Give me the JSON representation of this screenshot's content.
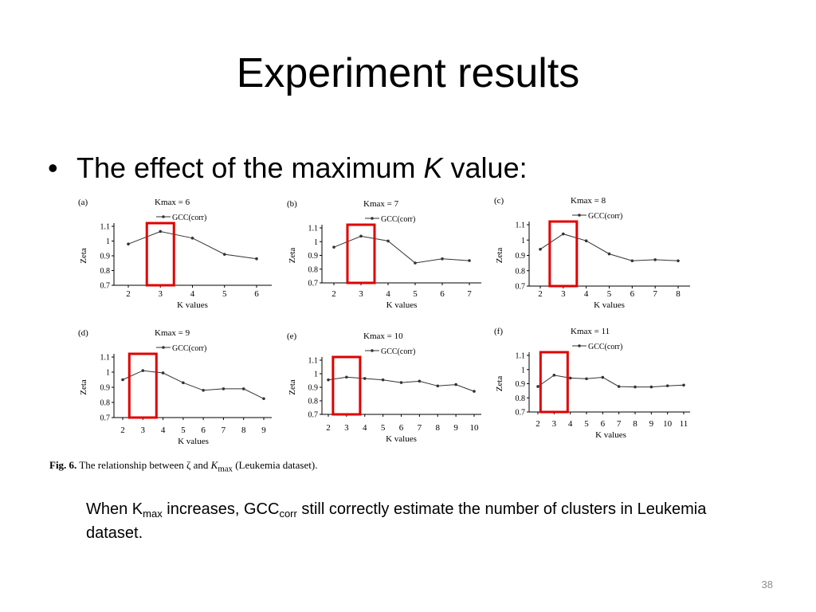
{
  "slide": {
    "title": "Experiment results",
    "bullet": {
      "prefix": "The effect of the maximum ",
      "italic": "K",
      "suffix": " value:"
    },
    "caption": {
      "bold": "Fig. 6.",
      "text1": "  The relationship between ζ and ",
      "italic": "K",
      "sub": "max",
      "text2": " (Leukemia dataset)."
    },
    "note": {
      "p1": "When K",
      "sub1": "max",
      "p2": " increases, GCC",
      "sub2": "corr",
      "p3": " still correctly estimate the number of clusters in Leukemia dataset."
    },
    "page_number": "38"
  },
  "colors": {
    "highlight": "#e00000",
    "line": "#333333"
  },
  "chart_data": [
    {
      "type": "line",
      "panel": "(a)",
      "title": "Kmax = 6",
      "legend": "GCC(corr)",
      "xlabel": "K values",
      "ylabel": "Zeta",
      "ylim": [
        0.7,
        1.1
      ],
      "yticks": [
        "1.1",
        "1",
        "0.9",
        "0.8",
        "0.7"
      ],
      "x": [
        2,
        3,
        4,
        5,
        6
      ],
      "values": [
        0.98,
        1.065,
        1.02,
        0.91,
        0.88
      ],
      "highlight_x": 3
    },
    {
      "type": "line",
      "panel": "(b)",
      "title": "Kmax = 7",
      "legend": "GCC(corr)",
      "xlabel": "K values",
      "ylabel": "Zeta",
      "ylim": [
        0.7,
        1.1
      ],
      "yticks": [
        "1.1",
        "1",
        "0.9",
        "0.8",
        "0.7"
      ],
      "x": [
        2,
        3,
        4,
        5,
        6,
        7
      ],
      "values": [
        0.96,
        1.04,
        1.005,
        0.845,
        0.875,
        0.862
      ],
      "highlight_x": 3
    },
    {
      "type": "line",
      "panel": "(c)",
      "title": "Kmax = 8",
      "legend": "GCC(corr)",
      "xlabel": "K values",
      "ylabel": "Zeta",
      "ylim": [
        0.7,
        1.1
      ],
      "yticks": [
        "1.1",
        "1",
        "0.9",
        "0.8",
        "0.7"
      ],
      "x": [
        2,
        3,
        4,
        5,
        6,
        7,
        8
      ],
      "values": [
        0.94,
        1.04,
        0.995,
        0.91,
        0.865,
        0.872,
        0.865
      ],
      "highlight_x": 3
    },
    {
      "type": "line",
      "panel": "(d)",
      "title": "Kmax = 9",
      "legend": "GCC(corr)",
      "xlabel": "K values",
      "ylabel": "Zeta",
      "ylim": [
        0.7,
        1.1
      ],
      "yticks": [
        "1.1",
        "1",
        "0.9",
        "0.8",
        "0.7"
      ],
      "x": [
        2,
        3,
        4,
        5,
        6,
        7,
        8,
        9
      ],
      "values": [
        0.95,
        1.01,
        0.995,
        0.93,
        0.88,
        0.89,
        0.89,
        0.825
      ],
      "highlight_x": 3
    },
    {
      "type": "line",
      "panel": "(e)",
      "title": "Kmax = 10",
      "legend": "GCC(corr)",
      "xlabel": "K values",
      "ylabel": "Zeta",
      "ylim": [
        0.7,
        1.1
      ],
      "yticks": [
        "1.1",
        "1",
        "0.9",
        "0.8",
        "0.7"
      ],
      "x": [
        2,
        3,
        4,
        5,
        6,
        7,
        8,
        9,
        10
      ],
      "values": [
        0.955,
        0.975,
        0.965,
        0.955,
        0.935,
        0.945,
        0.91,
        0.92,
        0.87
      ],
      "highlight_x": 3
    },
    {
      "type": "line",
      "panel": "(f)",
      "title": "Kmax = 11",
      "legend": "GCC(corr)",
      "xlabel": "K values",
      "ylabel": "Zeta",
      "ylim": [
        0.7,
        1.1
      ],
      "yticks": [
        "1.1",
        "1",
        "0.9",
        "0.8",
        "0.7"
      ],
      "x": [
        2,
        3,
        4,
        5,
        6,
        7,
        8,
        9,
        10,
        11
      ],
      "values": [
        0.88,
        0.96,
        0.94,
        0.935,
        0.945,
        0.88,
        0.877,
        0.877,
        0.885,
        0.89
      ],
      "highlight_x": 3
    }
  ]
}
